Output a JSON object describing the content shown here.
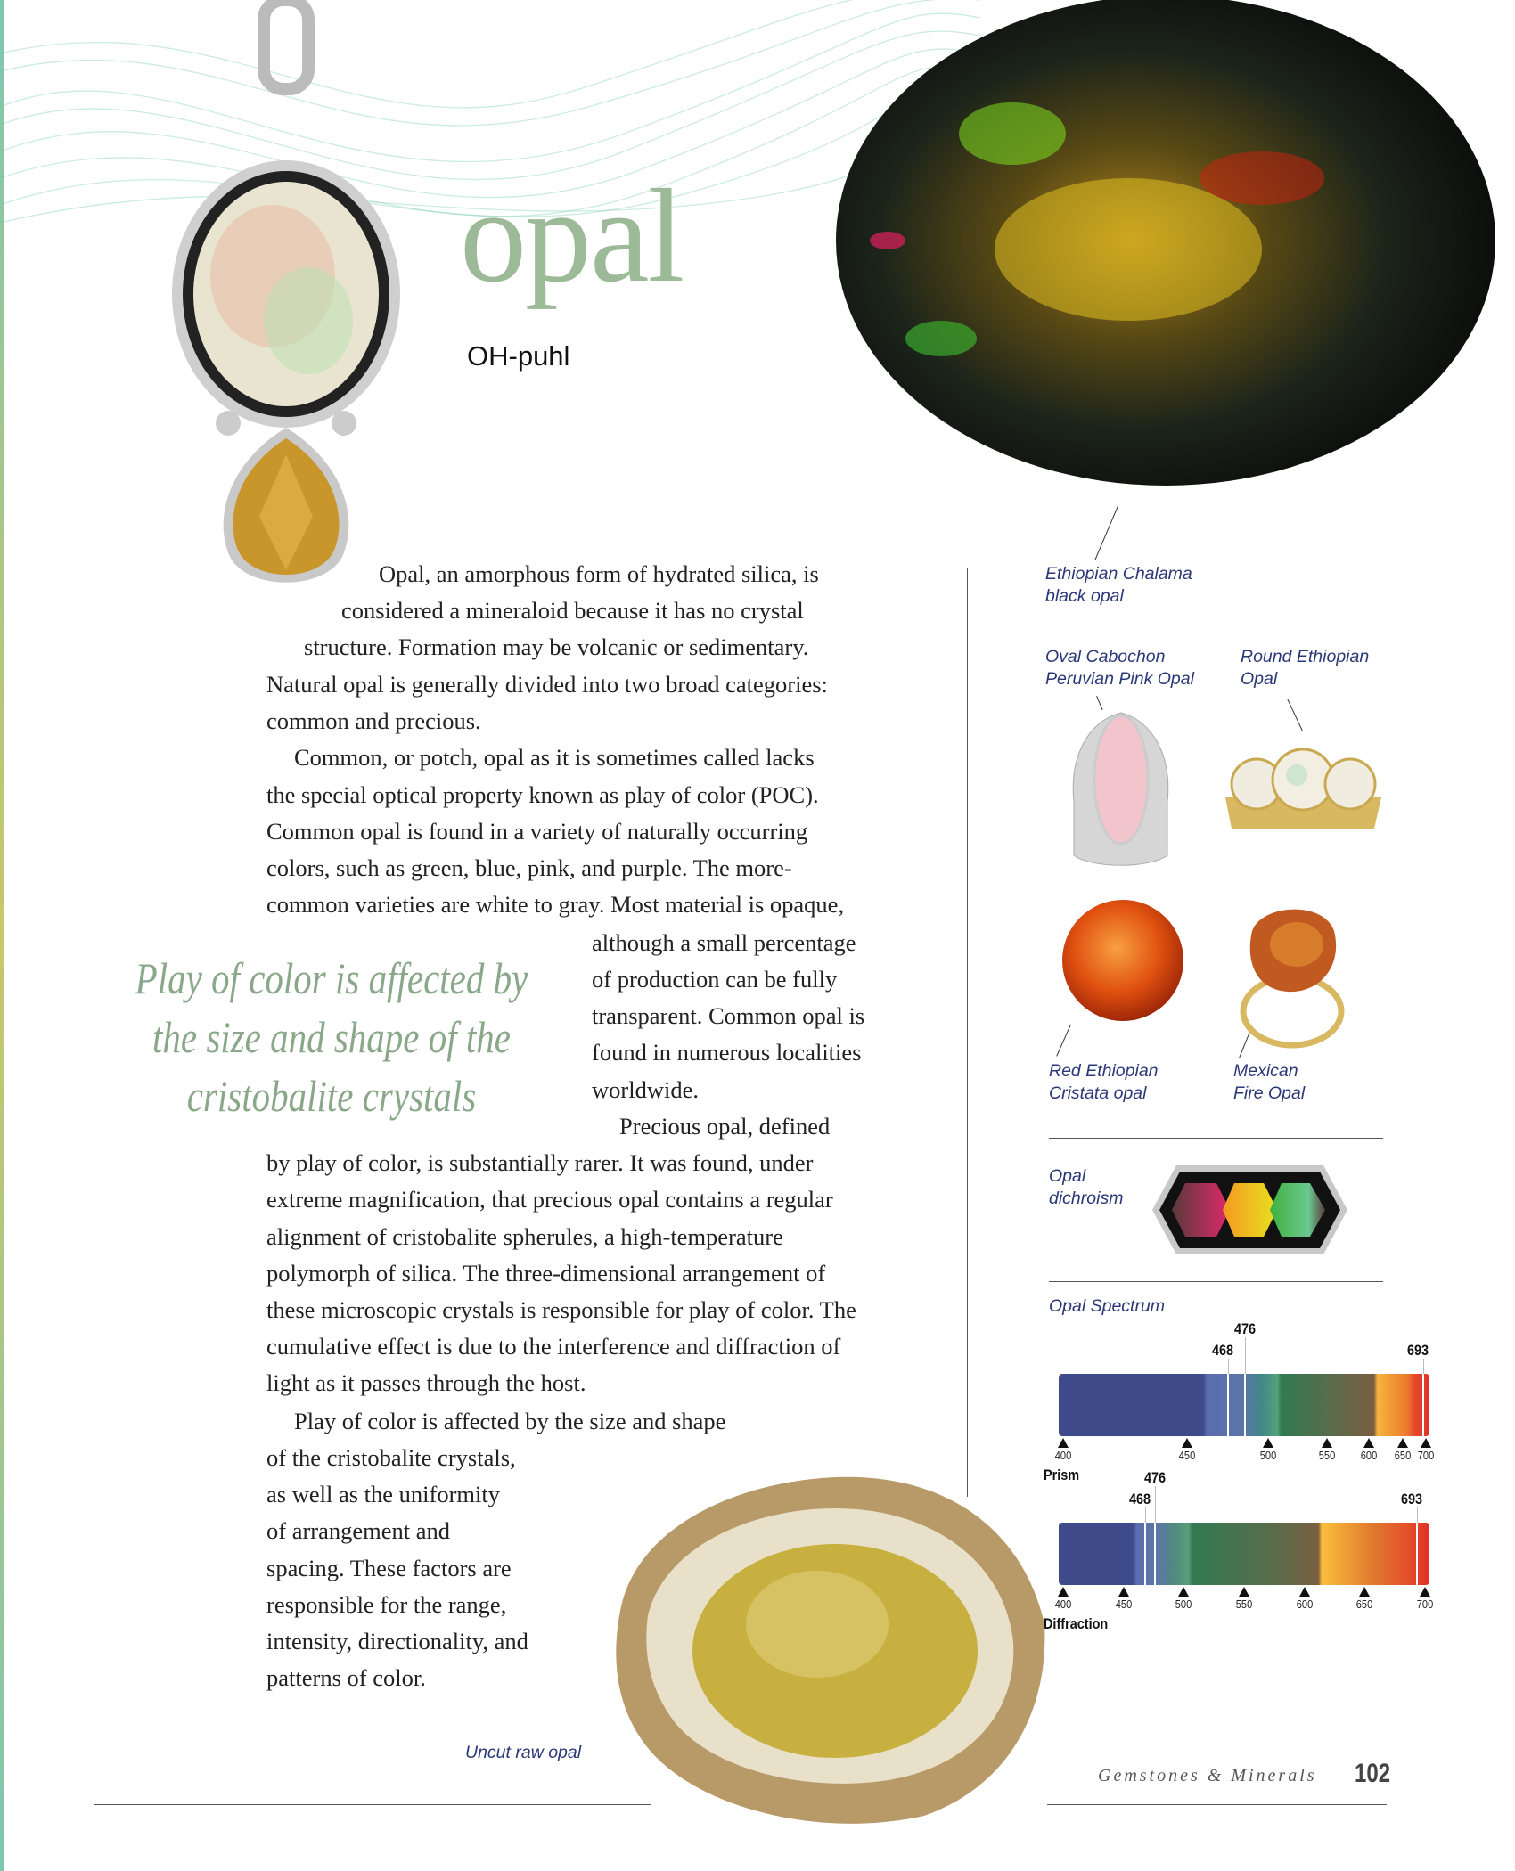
{
  "header": {
    "title": "opal",
    "pronunciation": "OH-puhl"
  },
  "body": {
    "lines": [
      "Opal, an amorphous form of hydrated silica, is",
      "considered a mineraloid because it has no crystal",
      "structure. Formation may be volcanic or sedimentary.",
      "Natural opal is generally divided into two broad categories:",
      "common and precious.",
      "Common, or potch, opal as it is sometimes called lacks",
      "the special optical property known as play of color (POC).",
      "Common opal is found in a variety of naturally occurring",
      "colors, such as green, blue, pink, and purple. The more-",
      "common varieties are white to gray. Most material is opaque,",
      "although a small percentage",
      "of production can be fully",
      "transparent. Common opal is",
      "found in numerous localities",
      "worldwide.",
      "Precious opal, defined",
      "by play of color, is substantially rarer. It was found, under",
      "extreme magnification, that precious opal contains a regular",
      "alignment of cristobalite spherules, a high-temperature",
      "polymorph of silica. The three-dimensional arrangement of",
      "these microscopic crystals is responsible for play of color. The",
      "cumulative effect is due to the interference and diffraction of",
      "light as it passes through the host.",
      "Play of color is affected by the size and shape",
      "of the cristobalite crystals,",
      "as well as the uniformity",
      "of arrangement and",
      "spacing. These factors are",
      "responsible for the range,",
      "intensity, directionality, and",
      "patterns of color."
    ]
  },
  "pull_quote": {
    "lines": [
      "Play of color is affected by",
      "the size and shape of the",
      "cristobalite crystals"
    ]
  },
  "captions": {
    "black_opal": [
      "Ethiopian Chalama",
      "black opal"
    ],
    "pink_opal": [
      "Oval Cabochon",
      "Peruvian Pink Opal"
    ],
    "round_opal": [
      "Round Ethiopian",
      "Opal"
    ],
    "red_opal": [
      "Red Ethiopian",
      "Cristata opal"
    ],
    "fire_opal": [
      "Mexican",
      "Fire Opal"
    ],
    "dichroism": [
      "Opal",
      "dichroism"
    ],
    "raw_opal": "Uncut raw opal"
  },
  "spectrum": {
    "title": "Opal Spectrum",
    "prism": {
      "name": "Prism",
      "ticks": [
        "400",
        "450",
        "500",
        "550",
        "600",
        "650",
        "700"
      ],
      "markers": [
        "468",
        "476",
        "693"
      ]
    },
    "diffraction": {
      "name": "Diffraction",
      "ticks": [
        "400",
        "450",
        "500",
        "550",
        "600",
        "650",
        "700"
      ],
      "markers": [
        "468",
        "476",
        "693"
      ]
    }
  },
  "footer": {
    "book_title": "Gemstones & Minerals",
    "page_number": "102"
  },
  "colors": {
    "title_green": "#9cba97",
    "caption_navy": "#2b3878",
    "swirl_teal": "#6cc6a8"
  }
}
